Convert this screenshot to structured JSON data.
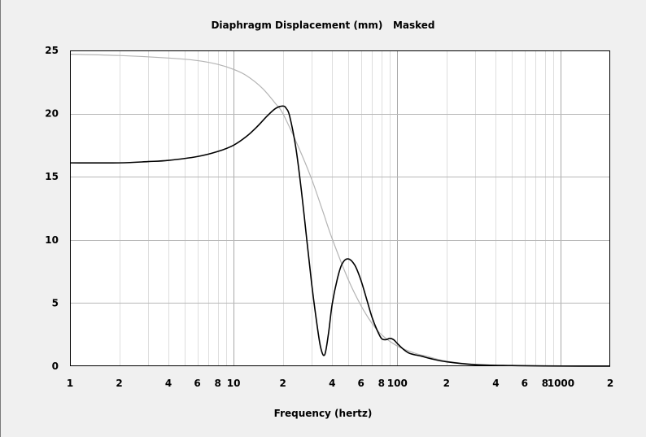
{
  "chart_data": {
    "type": "line",
    "title": "Diaphragm Displacement (mm)   Masked",
    "xlabel": "Frequency (hertz)",
    "ylabel": "",
    "x_scale": "log",
    "xlim": [
      1,
      2000
    ],
    "ylim": [
      0,
      25
    ],
    "grid": true,
    "x_ticks": [
      {
        "value": 1,
        "label": "1"
      },
      {
        "value": 2,
        "label": "2"
      },
      {
        "value": 4,
        "label": "4"
      },
      {
        "value": 6,
        "label": "6"
      },
      {
        "value": 8,
        "label": "8"
      },
      {
        "value": 10,
        "label": "10"
      },
      {
        "value": 20,
        "label": "2"
      },
      {
        "value": 40,
        "label": "4"
      },
      {
        "value": 60,
        "label": "6"
      },
      {
        "value": 80,
        "label": "8"
      },
      {
        "value": 100,
        "label": "100"
      },
      {
        "value": 200,
        "label": "2"
      },
      {
        "value": 400,
        "label": "4"
      },
      {
        "value": 600,
        "label": "6"
      },
      {
        "value": 800,
        "label": "8"
      },
      {
        "value": 1000,
        "label": "1000"
      },
      {
        "value": 2000,
        "label": "2"
      }
    ],
    "y_ticks": [
      {
        "value": 0,
        "label": "0"
      },
      {
        "value": 5,
        "label": "5"
      },
      {
        "value": 10,
        "label": "10"
      },
      {
        "value": 15,
        "label": "15"
      },
      {
        "value": 20,
        "label": "20"
      },
      {
        "value": 25,
        "label": "25"
      }
    ],
    "series": [
      {
        "color": "#b4b4b4",
        "x": [
          1,
          2,
          4,
          6,
          8,
          10,
          12,
          15,
          18,
          20,
          25,
          30,
          35,
          40,
          50,
          60,
          70,
          80,
          100,
          130,
          150,
          200,
          300,
          500,
          1000,
          2000
        ],
        "y": [
          24.7,
          24.6,
          24.4,
          24.2,
          23.9,
          23.5,
          23.0,
          22.0,
          20.8,
          20.0,
          17.3,
          14.8,
          12.3,
          10.1,
          6.9,
          4.8,
          3.4,
          2.5,
          1.6,
          1.0,
          0.8,
          0.4,
          0.15,
          0.05,
          0.01,
          0.0
        ]
      },
      {
        "color": "#000000",
        "x": [
          1,
          2,
          3,
          4,
          6,
          8,
          10,
          12,
          14,
          16,
          18,
          20,
          21,
          22,
          24,
          26,
          28,
          30,
          32,
          34,
          36,
          38,
          40,
          43,
          46,
          50,
          55,
          60,
          65,
          70,
          75,
          80,
          85,
          90,
          95,
          100,
          110,
          120,
          140,
          160,
          200,
          300,
          500,
          1000,
          2000
        ],
        "y": [
          16.1,
          16.1,
          16.2,
          16.3,
          16.6,
          17.0,
          17.5,
          18.2,
          19.0,
          19.8,
          20.4,
          20.6,
          20.4,
          19.8,
          17.3,
          13.8,
          10.0,
          6.5,
          3.7,
          1.5,
          0.9,
          2.6,
          4.9,
          6.9,
          8.1,
          8.5,
          8.0,
          6.8,
          5.3,
          3.9,
          2.9,
          2.2,
          2.1,
          2.2,
          2.1,
          1.8,
          1.3,
          1.0,
          0.8,
          0.6,
          0.35,
          0.12,
          0.05,
          0.01,
          0.0
        ]
      }
    ]
  }
}
